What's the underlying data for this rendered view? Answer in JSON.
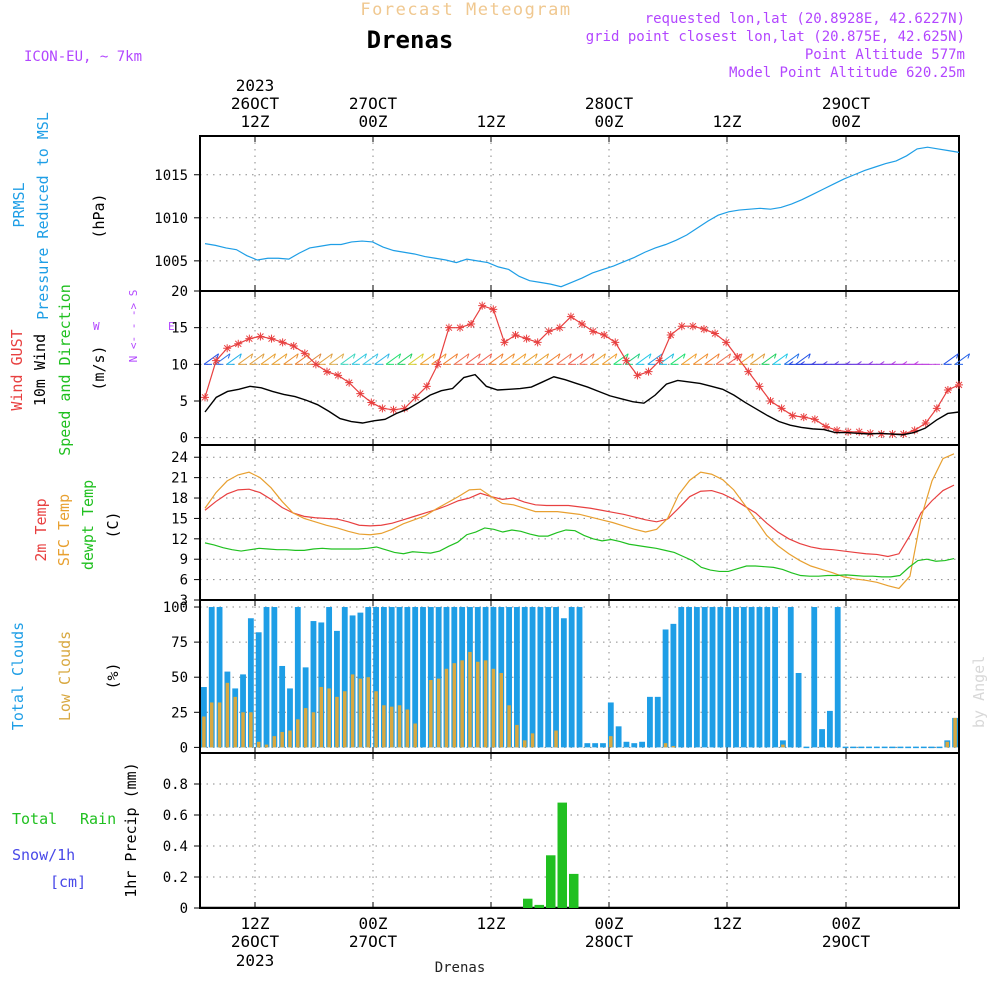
{
  "header": {
    "title": "Forecast Meteogram",
    "station": "Drenas",
    "model": "ICON-EU, ~ 7km",
    "requested": "requested lon,lat (20.8928E, 42.6227N)",
    "gridpoint": "grid point closest lon,lat (20.875E, 42.625N)",
    "altitude": "Point Altitude 577m",
    "model_altitude": "Model Point Altitude 620.25m",
    "watermark": "by Angel",
    "bottom_label": "Drenas"
  },
  "time_axis": {
    "year": "2023",
    "ticks": [
      {
        "hour": "12Z",
        "date": "26OCT",
        "year": "2023"
      },
      {
        "hour": "00Z",
        "date": "27OCT",
        "year": ""
      },
      {
        "hour": "12Z",
        "date": "",
        "year": ""
      },
      {
        "hour": "00Z",
        "date": "28OCT",
        "year": ""
      },
      {
        "hour": "12Z",
        "date": "",
        "year": ""
      },
      {
        "hour": "00Z",
        "date": "29OCT",
        "year": ""
      }
    ]
  },
  "panel_labels": {
    "pressure": [
      "PRMSL",
      "Pressure Reduced to MSL"
    ],
    "pressure_unit": "(hPa)",
    "wind": [
      "Wind GUST",
      "10m Wind",
      "Speed and Direction"
    ],
    "wind_unit": "(m/s)",
    "compass": "N  <-  -  ->  S",
    "compass_w": "W",
    "compass_e": "E",
    "temp": [
      "2m Temp",
      "SFC Temp",
      "dewpt Temp"
    ],
    "temp_unit": "(C)",
    "cloud": [
      "Total Clouds",
      "Low Clouds"
    ],
    "cloud_unit": "(%)",
    "precip_legend": [
      "Total",
      "Rain",
      "Snow/1h",
      "[cm]"
    ],
    "precip_unit": "1hr Precip (mm)"
  },
  "colors": {
    "pressure": "#1e9ee6",
    "gust": "#e84040",
    "wind": "#000000",
    "temp2m": "#e84040",
    "sfctemp": "#e8a030",
    "dewpt": "#20c020",
    "total_cloud": "#1e9ee6",
    "low_cloud": "#d8a840",
    "rain": "#20c020",
    "snow": "#4848e8",
    "hdr_orange": "#f0c890",
    "hdr_purple": "#b246ff"
  },
  "chart_data": [
    {
      "type": "line",
      "title": "PRMSL Pressure Reduced to MSL",
      "ylabel": "hPa",
      "ylim": [
        1001.5,
        1019.5
      ],
      "yticks": [
        1005,
        1010,
        1015
      ],
      "x_hours_start": 0,
      "x_hours_step": 1,
      "values": [
        1007.0,
        1006.8,
        1006.5,
        1006.3,
        1005.6,
        1005.1,
        1005.3,
        1005.3,
        1005.2,
        1005.9,
        1006.5,
        1006.7,
        1006.9,
        1006.9,
        1007.2,
        1007.3,
        1007.2,
        1006.6,
        1006.2,
        1006.0,
        1005.8,
        1005.5,
        1005.3,
        1005.1,
        1004.8,
        1005.2,
        1005.0,
        1004.8,
        1004.3,
        1004.0,
        1003.2,
        1002.7,
        1002.5,
        1002.3,
        1002.0,
        1002.5,
        1003.0,
        1003.6,
        1004.0,
        1004.4,
        1004.9,
        1005.4,
        1006.0,
        1006.5,
        1006.9,
        1007.4,
        1008.0,
        1008.8,
        1009.6,
        1010.3,
        1010.7,
        1010.9,
        1011.0,
        1011.1,
        1011.0,
        1011.2,
        1011.6,
        1012.1,
        1012.7,
        1013.3,
        1013.9,
        1014.5,
        1015.0,
        1015.5,
        1015.9,
        1016.3,
        1016.6,
        1017.2,
        1018.0,
        1018.2,
        1018.0,
        1017.8,
        1017.6
      ]
    },
    {
      "type": "line",
      "title": "Wind GUST / 10m Wind Speed and Direction",
      "ylabel": "m/s",
      "ylim": [
        -1,
        20
      ],
      "yticks": [
        0,
        5,
        10,
        15,
        20
      ],
      "series": [
        {
          "name": "Wind GUST",
          "values": [
            5.5,
            10.5,
            12.2,
            12.8,
            13.5,
            13.8,
            13.5,
            13.0,
            12.5,
            11.5,
            10.0,
            9.0,
            8.5,
            7.5,
            6.0,
            4.8,
            4.0,
            3.8,
            4.0,
            5.5,
            7.0,
            10.0,
            15.0,
            15.0,
            15.5,
            18.0,
            17.5,
            13.0,
            14.0,
            13.5,
            13.0,
            14.5,
            15.0,
            16.5,
            15.5,
            14.5,
            14.0,
            13.0,
            10.5,
            8.5,
            9.0,
            10.5,
            14.0,
            15.2,
            15.2,
            14.8,
            14.2,
            13.0,
            11.0,
            9.0,
            7.0,
            5.0,
            4.0,
            3.0,
            2.8,
            2.5,
            1.5,
            1.0,
            0.8,
            0.8,
            0.6,
            0.5,
            0.5,
            0.5,
            1.0,
            2.0,
            4.0,
            6.5,
            7.2
          ]
        },
        {
          "name": "10m Wind",
          "values": [
            3.5,
            5.5,
            6.3,
            6.6,
            7.0,
            6.8,
            6.3,
            5.9,
            5.6,
            5.1,
            4.5,
            3.6,
            2.6,
            2.2,
            2.0,
            2.3,
            2.5,
            3.3,
            3.9,
            4.8,
            5.8,
            6.4,
            6.7,
            8.2,
            8.6,
            7.0,
            6.5,
            6.6,
            6.7,
            6.9,
            7.6,
            8.3,
            7.9,
            7.4,
            6.9,
            6.3,
            5.7,
            5.3,
            4.9,
            4.7,
            5.8,
            7.3,
            7.8,
            7.6,
            7.4,
            7.0,
            6.6,
            5.8,
            4.8,
            3.9,
            3.0,
            2.2,
            1.7,
            1.4,
            1.2,
            1.1,
            0.7,
            0.7,
            0.6,
            0.5,
            0.6,
            0.5,
            0.4,
            0.7,
            1.3,
            2.4,
            3.3,
            3.5
          ]
        }
      ],
      "barb_colors": [
        "#2050e8",
        "#2a70ea",
        "#20b0ea",
        "#e0a040",
        "#e0a040",
        "#e8a030",
        "#e8a030",
        "#ea9030",
        "#ea8030",
        "#e08a40",
        "#e0a040",
        "#e0b050",
        "#40d8c0",
        "#30c8e0",
        "#40c8e8",
        "#30b8e8",
        "#20e070",
        "#20d060",
        "#d8d030",
        "#f0a030",
        "#f09030",
        "#f08030",
        "#f07050",
        "#f06050",
        "#f06050",
        "#f08030",
        "#f09030",
        "#f0a030",
        "#e8a030",
        "#e8a030",
        "#f08030",
        "#f07050",
        "#f06050",
        "#f07050",
        "#e8a030",
        "#f0a030",
        "#20e070",
        "#20d080",
        "#20c8e8",
        "#1e9ee6",
        "#20c0e0",
        "#20e070",
        "#f0a030",
        "#f09030",
        "#f08030",
        "#f07050",
        "#f06050",
        "#e8a030",
        "#e0a040",
        "#20d060",
        "#20c8e8",
        "#2070e8",
        "#2050e8",
        "#2040e0",
        "#3040e0",
        "#4040e0",
        "#5040e0",
        "#6040e0",
        "#7040e0",
        "#8040e0",
        "#9040e0",
        "#a040e0",
        "#b040e0",
        "#b840e0",
        "#c040e0",
        "#2050e8",
        "#2060e8"
      ]
    },
    {
      "type": "line",
      "title": "2m Temp / SFC Temp / dewpt Temp",
      "ylabel": "C",
      "ylim": [
        3,
        25.8
      ],
      "yticks": [
        3,
        6,
        9,
        12,
        15,
        18,
        21,
        24
      ],
      "series": [
        {
          "name": "2m Temp",
          "values": [
            16.2,
            17.5,
            18.6,
            19.2,
            19.3,
            18.8,
            17.8,
            16.6,
            15.8,
            15.3,
            15.1,
            15.0,
            14.9,
            14.5,
            14.0,
            13.9,
            14.0,
            14.3,
            14.8,
            15.3,
            15.8,
            16.3,
            16.9,
            17.6,
            18.0,
            18.7,
            18.2,
            17.8,
            18.0,
            17.4,
            17.0,
            16.9,
            16.9,
            16.9,
            16.7,
            16.5,
            16.2,
            15.9,
            15.6,
            15.2,
            14.8,
            14.5,
            14.9,
            16.5,
            18.2,
            19.0,
            19.1,
            18.6,
            17.8,
            16.8,
            15.8,
            14.3,
            13.0,
            12.0,
            11.3,
            10.8,
            10.5,
            10.4,
            10.2,
            10.0,
            9.8,
            9.7,
            9.4,
            9.8,
            12.5,
            15.8,
            17.6,
            19.1,
            19.9
          ]
        },
        {
          "name": "SFC Temp",
          "values": [
            16.5,
            18.8,
            20.5,
            21.4,
            21.8,
            21.0,
            19.5,
            17.5,
            15.8,
            15.0,
            14.5,
            14.0,
            13.6,
            13.1,
            12.7,
            12.6,
            12.8,
            13.4,
            14.2,
            14.8,
            15.4,
            16.4,
            17.3,
            18.2,
            19.2,
            19.3,
            18.2,
            17.2,
            17.0,
            16.5,
            16.0,
            16.0,
            16.0,
            15.8,
            15.6,
            15.2,
            14.8,
            14.4,
            13.9,
            13.4,
            13.0,
            13.4,
            15.0,
            18.5,
            20.6,
            21.8,
            21.5,
            20.7,
            19.2,
            17.0,
            14.8,
            12.5,
            11.0,
            9.8,
            8.8,
            8.0,
            7.5,
            7.0,
            6.4,
            6.1,
            5.9,
            5.6,
            5.1,
            4.7,
            6.5,
            15.0,
            20.5,
            23.8,
            24.5
          ]
        },
        {
          "name": "dewpt Temp",
          "values": [
            11.4,
            11.1,
            10.7,
            10.4,
            10.2,
            10.4,
            10.6,
            10.5,
            10.4,
            10.4,
            10.3,
            10.3,
            10.5,
            10.6,
            10.5,
            10.5,
            10.5,
            10.5,
            10.6,
            10.8,
            10.4,
            10.0,
            9.8,
            10.1,
            10.0,
            9.9,
            10.2,
            10.9,
            11.5,
            12.6,
            13.0,
            13.6,
            13.4,
            13.0,
            13.3,
            13.1,
            12.7,
            12.4,
            12.4,
            12.9,
            13.3,
            13.2,
            12.5,
            12.0,
            11.7,
            11.9,
            11.6,
            11.2,
            11.0,
            10.8,
            10.6,
            10.3,
            10.0,
            9.4,
            8.8,
            7.8,
            7.4,
            7.2,
            7.2,
            7.6,
            8.0,
            8.0,
            7.9,
            7.8,
            7.5,
            7.0,
            6.6,
            6.5,
            6.5,
            6.6,
            6.6,
            6.7,
            6.6,
            6.5,
            6.5,
            6.4,
            6.4,
            6.6,
            7.8,
            8.8,
            9.0,
            8.7,
            8.8,
            9.1
          ]
        }
      ]
    },
    {
      "type": "bar",
      "title": "Total Clouds / Low Clouds",
      "ylabel": "%",
      "ylim": [
        -4,
        105
      ],
      "yticks": [
        0,
        25,
        50,
        75,
        100
      ],
      "series": [
        {
          "name": "Total Clouds",
          "values": [
            43,
            100,
            100,
            54,
            42,
            52,
            92,
            82,
            100,
            100,
            58,
            42,
            100,
            57,
            90,
            89,
            100,
            83,
            100,
            94,
            96,
            100,
            100,
            100,
            100,
            100,
            100,
            100,
            100,
            100,
            100,
            100,
            100,
            100,
            100,
            100,
            100,
            100,
            100,
            100,
            100,
            100,
            100,
            100,
            100,
            100,
            92,
            100,
            100,
            3,
            3,
            3,
            32,
            15,
            4,
            3,
            4,
            36,
            36,
            84,
            88,
            100,
            100,
            100,
            100,
            100,
            100,
            100,
            100,
            100,
            100,
            100,
            100,
            100,
            5,
            100,
            53,
            0,
            100,
            13,
            26,
            100,
            0,
            0,
            0,
            0,
            0,
            0,
            0,
            0,
            0,
            0,
            0,
            0,
            0,
            5,
            21
          ]
        },
        {
          "name": "Low Clouds",
          "values": [
            22,
            32,
            32,
            46,
            36,
            25,
            25,
            4,
            2,
            8,
            11,
            12,
            20,
            28,
            25,
            43,
            42,
            36,
            40,
            52,
            49,
            50,
            40,
            30,
            29,
            30,
            27,
            17,
            0,
            48,
            49,
            56,
            60,
            62,
            68,
            61,
            62,
            56,
            53,
            30,
            16,
            5,
            10,
            0,
            0,
            12,
            0,
            0,
            0,
            0,
            0,
            0,
            8,
            0,
            0,
            0,
            0,
            0,
            0,
            3,
            1,
            0,
            0,
            0,
            0,
            0,
            0,
            0,
            0,
            0,
            0,
            0,
            0,
            0,
            2,
            0,
            0,
            0,
            0,
            0,
            0,
            0,
            0,
            0,
            0,
            0,
            0,
            0,
            0,
            0,
            0,
            0,
            0,
            0,
            0,
            4,
            21
          ]
        }
      ]
    },
    {
      "type": "bar",
      "title": "1hr Precip (mm)",
      "ylabel": "mm",
      "ylim": [
        0,
        1.0
      ],
      "yticks": [
        0,
        0.2,
        0.4,
        0.6,
        0.8
      ],
      "series": [
        {
          "name": "Total Rain",
          "values": [
            0,
            0,
            0,
            0,
            0,
            0,
            0,
            0,
            0,
            0,
            0,
            0,
            0,
            0,
            0,
            0,
            0,
            0,
            0,
            0,
            0,
            0,
            0,
            0,
            0,
            0,
            0,
            0,
            0.06,
            0.02,
            0.34,
            0.68,
            0.22,
            0,
            0,
            0,
            0,
            0,
            0,
            0,
            0,
            0,
            0,
            0,
            0,
            0,
            0,
            0,
            0,
            0,
            0,
            0,
            0,
            0,
            0,
            0,
            0,
            0,
            0,
            0,
            0,
            0,
            0,
            0,
            0,
            0
          ]
        },
        {
          "name": "Snow/1h [cm]",
          "values": []
        }
      ]
    }
  ]
}
